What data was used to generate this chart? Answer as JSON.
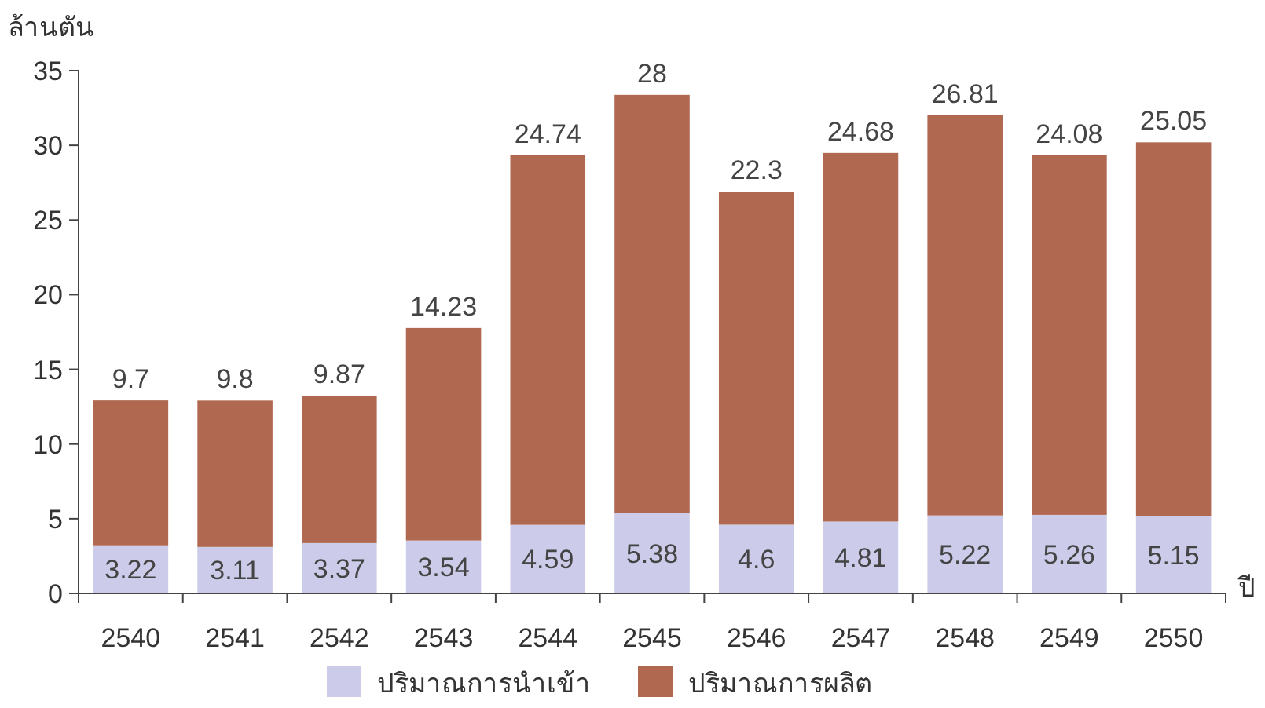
{
  "chart_data": {
    "type": "bar",
    "stacked": true,
    "ylabel": "ล้านตัน",
    "xlabel": "ปี",
    "categories": [
      "2540",
      "2541",
      "2542",
      "2543",
      "2544",
      "2545",
      "2546",
      "2547",
      "2548",
      "2549",
      "2550"
    ],
    "series": [
      {
        "name": "ปริมาณการนำเข้า",
        "color": "#ccccea",
        "values": [
          3.22,
          3.11,
          3.37,
          3.54,
          4.59,
          5.38,
          4.6,
          4.81,
          5.22,
          5.26,
          5.15
        ]
      },
      {
        "name": "ปริมาณการผลิต",
        "color": "#b06850",
        "values": [
          9.7,
          9.8,
          9.87,
          14.23,
          24.74,
          28,
          22.3,
          24.68,
          26.81,
          24.08,
          25.05
        ]
      }
    ],
    "ylim": [
      0,
      35
    ],
    "yticks": [
      0,
      5,
      10,
      15,
      20,
      25,
      30,
      35
    ],
    "data_labels": true,
    "legend": "bottom",
    "grid": false
  }
}
